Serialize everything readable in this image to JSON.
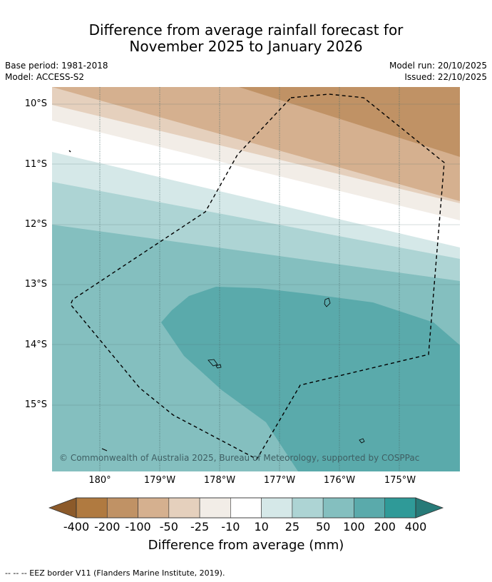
{
  "title": {
    "line1": "Difference from average rainfall forecast for",
    "line2": "November 2025 to January 2026"
  },
  "meta_left": {
    "base_period": "Base period: 1981-2018",
    "model": "Model: ACCESS-S2"
  },
  "meta_right": {
    "model_run": "Model run: 20/10/2025",
    "issued": "Issued: 22/10/2025"
  },
  "map": {
    "lat_labels": [
      "10°S",
      "11°S",
      "12°S",
      "13°S",
      "14°S",
      "15°S"
    ],
    "lon_labels": [
      "180°",
      "179°W",
      "178°W",
      "177°W",
      "176°W",
      "175°W"
    ],
    "copyright": "© Commonwealth of Australia 2025, Bureau of Meteorology, supported by COSPPac"
  },
  "colorbar": {
    "ticks": [
      "-400",
      "-200",
      "-100",
      "-50",
      "-25",
      "-10",
      "10",
      "25",
      "50",
      "100",
      "200",
      "400"
    ],
    "colors": [
      "#8c5a2a",
      "#b07a40",
      "#c09265",
      "#d5b08f",
      "#e5d0bd",
      "#f2ede7",
      "#ffffff",
      "#d5e8e8",
      "#add4d4",
      "#84bfbf",
      "#5aaaab",
      "#2f9a98",
      "#277a78"
    ],
    "title": "Difference from average (mm)"
  },
  "footer": "-- -- -- EEZ border V11 (Flanders Marine Institute, 2019)."
}
